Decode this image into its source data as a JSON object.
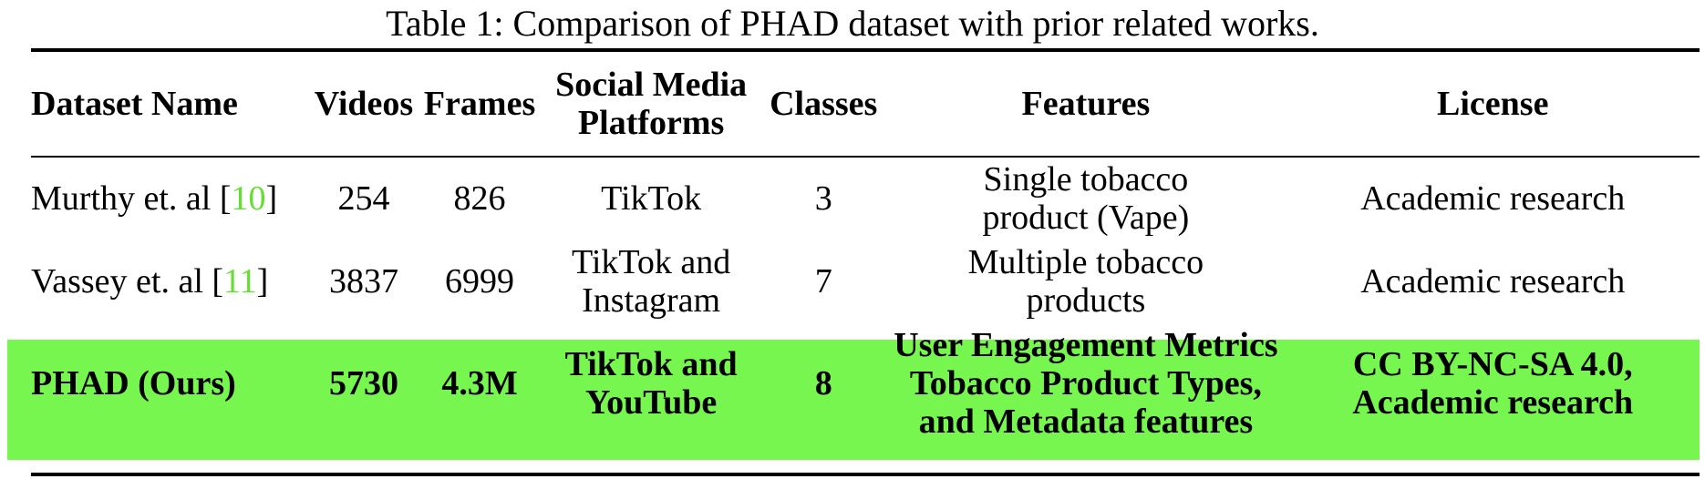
{
  "caption": "Table 1: Comparison of PHAD dataset with prior related works.",
  "highlight_color": "#76f64e",
  "citation_color": "#66dd33",
  "headers": {
    "dataset_name": "Dataset Name",
    "videos": "Videos",
    "frames": "Frames",
    "platforms_line1": "Social Media",
    "platforms_line2": "Platforms",
    "classes": "Classes",
    "features": "Features",
    "license": "License"
  },
  "rows": [
    {
      "name": "Murthy et. al [",
      "cite": "10",
      "name_end": "]",
      "videos": "254",
      "frames": "826",
      "platforms_line1": "TikTok",
      "platforms_line2": "",
      "classes": "3",
      "features_line1": "Single tobacco",
      "features_line2": "product (Vape)",
      "features_line3": "",
      "license_line1": "Academic research",
      "license_line2": ""
    },
    {
      "name": "Vassey et. al [",
      "cite": "11",
      "name_end": "]",
      "videos": "3837",
      "frames": "6999",
      "platforms_line1": "TikTok and",
      "platforms_line2": "Instagram",
      "classes": "7",
      "features_line1": "Multiple tobacco",
      "features_line2": "products",
      "features_line3": "",
      "license_line1": "Academic research",
      "license_line2": ""
    },
    {
      "name": "PHAD (Ours)",
      "cite": "",
      "name_end": "",
      "videos": "5730",
      "frames": "4.3M",
      "platforms_line1": "TikTok and",
      "platforms_line2": "YouTube",
      "classes": "8",
      "features_line1": "User Engagement Metrics",
      "features_line2": "Tobacco Product Types,",
      "features_line3": "and Metadata features",
      "license_line1": "CC BY-NC-SA 4.0,",
      "license_line2": "Academic research"
    }
  ]
}
